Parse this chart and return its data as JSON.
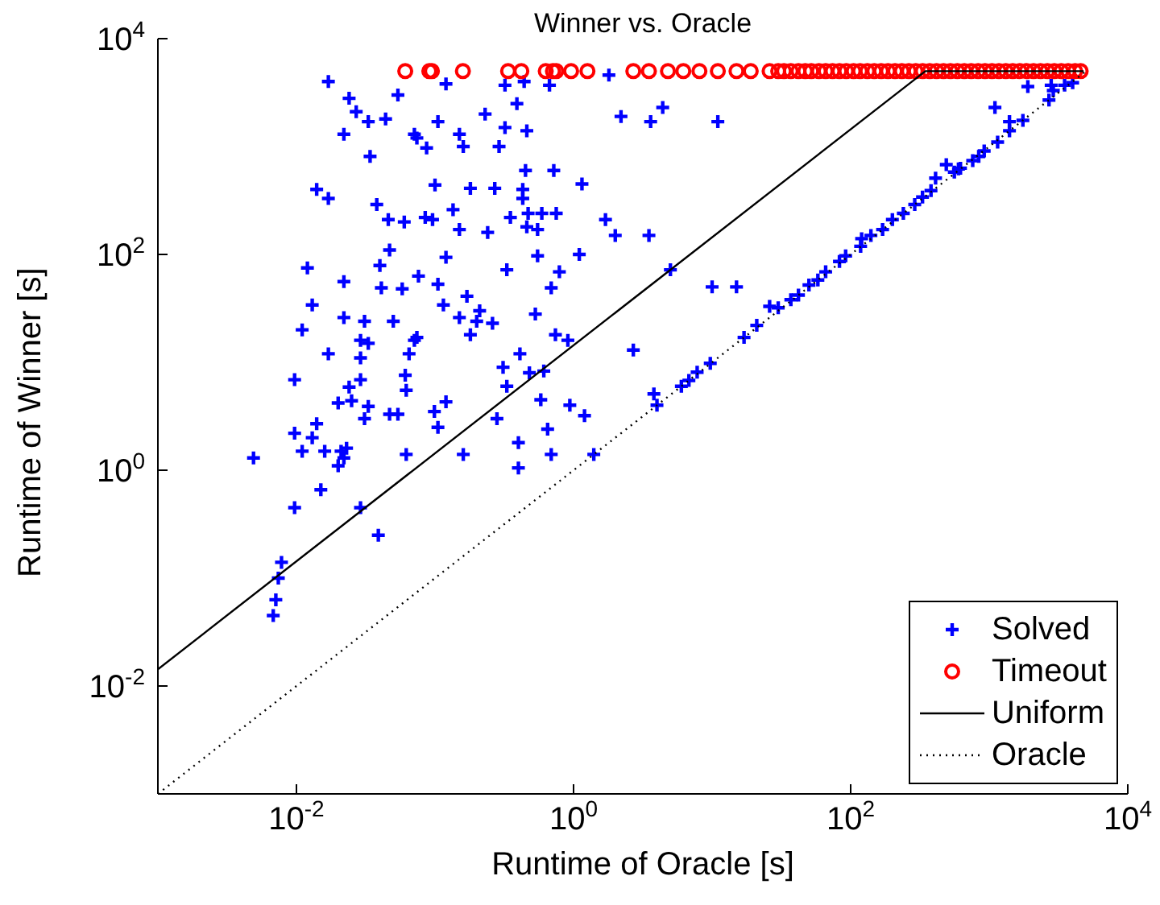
{
  "chart_data": {
    "type": "scatter",
    "title": "Winner vs. Oracle",
    "xlabel": "Runtime of Oracle [s]",
    "ylabel": "Runtime of Winner [s]",
    "log": "xy",
    "grid": false,
    "legend": "bottom right",
    "xlim": [
      0.001,
      10000
    ],
    "ylim": [
      0.001,
      10000
    ],
    "xticks": [
      {
        "value": 0.01,
        "label": "10$^{-2}$"
      },
      {
        "value": 1,
        "label": "10$^{0}$"
      },
      {
        "value": 100,
        "label": "10$^{2}$"
      },
      {
        "value": 10000,
        "label": "10$^{4}$"
      }
    ],
    "yticks": [
      {
        "value": 0.01,
        "label": "10$^{-2}$"
      },
      {
        "value": 1,
        "label": "10$^{0}$"
      },
      {
        "value": 100,
        "label": "10$^{2}$"
      },
      {
        "value": 10000,
        "label": "10$^{4}$"
      }
    ],
    "series": [
      {
        "name": "Solved",
        "type": "scatter",
        "marker": "cross",
        "color": "#0000ff",
        "x": [
          0.017,
          0.024,
          0.027,
          0.054,
          0.12,
          0.32,
          0.44,
          0.67,
          1.8,
          2.2,
          0.022,
          0.033,
          0.044,
          0.034,
          0.071,
          0.074,
          0.087,
          0.105,
          0.15,
          0.16,
          0.23,
          0.32,
          0.39,
          0.46,
          0.29,
          0.014,
          0.017,
          0.038,
          0.046,
          0.06,
          0.1,
          0.18,
          0.27,
          0.45,
          0.72,
          1.15,
          0.43,
          0.43,
          0.135,
          0.085,
          0.096,
          0.15,
          0.24,
          0.35,
          0.47,
          0.59,
          0.75,
          0.46,
          0.55,
          1.7,
          2.0,
          0.047,
          0.04,
          0.012,
          0.12,
          0.55,
          1.1,
          0.33,
          0.79,
          0.69,
          0.022,
          0.041,
          0.058,
          0.076,
          0.105,
          0.17,
          0.013,
          0.022,
          0.031,
          0.05,
          0.115,
          0.15,
          0.21,
          0.2,
          0.26,
          0.53,
          0.011,
          0.029,
          0.033,
          0.074,
          0.071,
          0.18,
          0.74,
          0.91,
          0.017,
          0.029,
          0.065,
          0.41,
          0.31,
          0.48,
          0.61,
          0.33,
          0.0097,
          0.024,
          0.029,
          0.061,
          0.062,
          0.02,
          0.025,
          0.033,
          0.031,
          0.047,
          0.054,
          0.099,
          0.12,
          0.105,
          0.28,
          0.58,
          0.94,
          1.2,
          0.65,
          0.0097,
          0.014,
          0.013,
          0.011,
          0.016,
          0.021,
          0.023,
          0.02,
          0.022,
          0.062,
          0.16,
          0.4,
          0.4,
          0.69,
          1.4,
          0.0049,
          0.015,
          0.0097,
          0.029,
          0.039,
          0.0078,
          0.0074,
          0.0071,
          0.0068,
          3.6,
          4.4,
          11,
          3.5,
          5.0,
          10,
          15,
          2.7,
          1900,
          1100,
          1400,
          1400,
          1750,
          2800,
          2900,
          2700,
          3500,
          4000,
          1150,
          920,
          840,
          760,
          620,
          560,
          490,
          410,
          380,
          290,
          240,
          200,
          170,
          120,
          118,
          92,
          83,
          66,
          58,
          42,
          37,
          30,
          26,
          21,
          17,
          9.7,
          7.8,
          6.8,
          6.0,
          3.8,
          4.0,
          50,
          140,
          330,
          600
        ],
        "values": [
          4000,
          2800,
          2100,
          3000,
          3800,
          3700,
          4000,
          3700,
          4600,
          1900,
          1300,
          1700,
          1800,
          810,
          1300,
          1200,
          970,
          1700,
          1300,
          1000,
          2000,
          1500,
          2500,
          1400,
          1000,
          400,
          330,
          290,
          210,
          200,
          440,
          410,
          410,
          600,
          600,
          450,
          400,
          330,
          260,
          220,
          210,
          170,
          160,
          220,
          240,
          240,
          240,
          180,
          170,
          210,
          150,
          110,
          79,
          75,
          94,
          97,
          100,
          72,
          69,
          49,
          56,
          49,
          48,
          63,
          53,
          41,
          34,
          26,
          24,
          24,
          34,
          26,
          30,
          24,
          23,
          28,
          20,
          16,
          15,
          17,
          16,
          18,
          18,
          16,
          12,
          11,
          12,
          12,
          9,
          8,
          8.3,
          6,
          6.9,
          5.9,
          6.9,
          7.6,
          5.5,
          4.2,
          4.4,
          3.9,
          3,
          3.3,
          3.3,
          3.5,
          4.3,
          2.5,
          3,
          4.5,
          4,
          3.2,
          2.4,
          2.2,
          2.7,
          2,
          1.5,
          1.5,
          1.5,
          1.6,
          1.1,
          1.3,
          1.4,
          1.4,
          1.8,
          1.05,
          1.4,
          1.4,
          1.3,
          0.66,
          0.45,
          0.45,
          0.25,
          0.14,
          0.1,
          0.063,
          0.045,
          1700,
          2300,
          1700,
          150,
          72,
          50,
          50,
          13,
          3600,
          2300,
          1700,
          1400,
          1750,
          3700,
          3300,
          2700,
          3700,
          3900,
          1100,
          910,
          810,
          740,
          630,
          580,
          680,
          510,
          390,
          290,
          240,
          210,
          170,
          140,
          119,
          97,
          86,
          69,
          58,
          42,
          38,
          32,
          33,
          22,
          17,
          9.8,
          8.1,
          6.8,
          6.0,
          5.1,
          4.0,
          52,
          150,
          340,
          620
        ]
      },
      {
        "name": "Timeout",
        "type": "scatter",
        "marker": "circle",
        "color": "#ff0000",
        "x": [
          0.061,
          0.091,
          0.095,
          0.159,
          0.337,
          0.42,
          0.63,
          0.71,
          0.75,
          0.96,
          1.26,
          2.7,
          3.5,
          4.8,
          6.2,
          8.1,
          11,
          15,
          19,
          26,
          30,
          33,
          37,
          42,
          47,
          52,
          59,
          66,
          74,
          83,
          93,
          105,
          117,
          132,
          148,
          166,
          186,
          209,
          234,
          263,
          295,
          331,
          372,
          417,
          468,
          525,
          589,
          661,
          741,
          832,
          933,
          1047,
          1175,
          1318,
          1479,
          1660,
          1862,
          2089,
          2344,
          2630,
          2951,
          3311,
          3715,
          4169,
          4571
        ],
        "values": [
          5000,
          5000,
          5000,
          5000,
          5000,
          5000,
          5000,
          5000,
          5000,
          5000,
          5000,
          5000,
          5000,
          5000,
          5000,
          5000,
          5000,
          5000,
          5000,
          5000,
          5000,
          5000,
          5000,
          5000,
          5000,
          5000,
          5000,
          5000,
          5000,
          5000,
          5000,
          5000,
          5000,
          5000,
          5000,
          5000,
          5000,
          5000,
          5000,
          5000,
          5000,
          5000,
          5000,
          5000,
          5000,
          5000,
          5000,
          5000,
          5000,
          5000,
          5000,
          5000,
          5000,
          5000,
          5000,
          5000,
          5000,
          5000,
          5000,
          5000,
          5000,
          5000,
          5000,
          5000,
          5000
        ]
      },
      {
        "name": "Uniform",
        "type": "line",
        "line_style": "solid",
        "color": "#000000",
        "x": [
          0.001,
          346,
          4800
        ],
        "values": [
          0.0143,
          5000,
          5000
        ]
      },
      {
        "name": "Oracle",
        "type": "line",
        "line_style": "dotted",
        "color": "#000000",
        "x": [
          0.001,
          5000
        ],
        "values": [
          0.001,
          5000
        ]
      }
    ]
  }
}
